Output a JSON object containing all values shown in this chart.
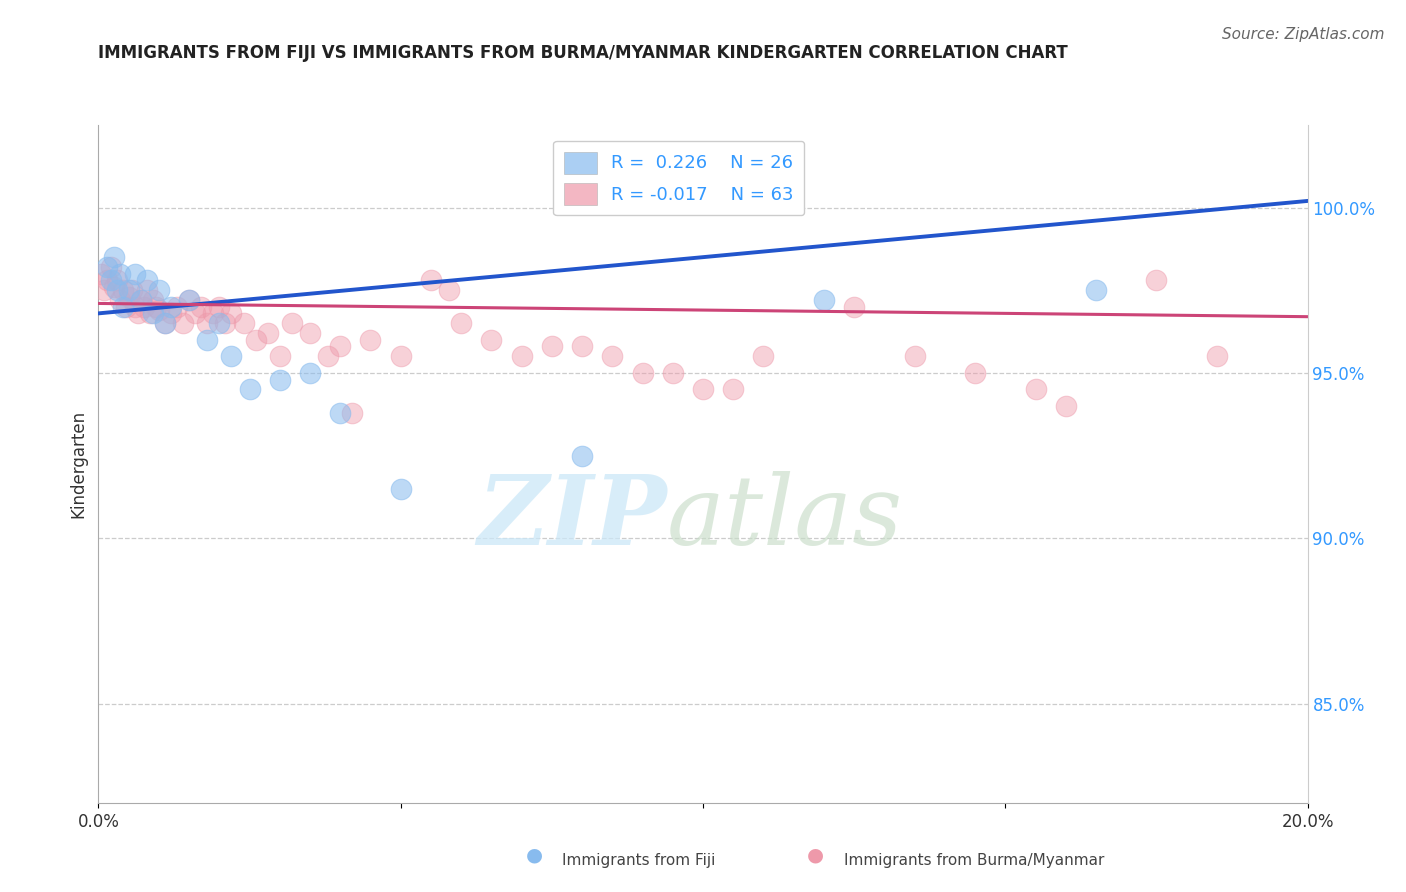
{
  "title": "IMMIGRANTS FROM FIJI VS IMMIGRANTS FROM BURMA/MYANMAR KINDERGARTEN CORRELATION CHART",
  "source": "Source: ZipAtlas.com",
  "ylabel": "Kindergarten",
  "xlim": [
    0.0,
    20.0
  ],
  "ylim": [
    82.0,
    102.5
  ],
  "yticks_right": [
    85.0,
    90.0,
    95.0,
    100.0
  ],
  "ytick_labels_right": [
    "85.0%",
    "90.0%",
    "95.0%",
    "100.0%"
  ],
  "xticks": [
    0.0,
    5.0,
    10.0,
    15.0,
    20.0
  ],
  "xtick_labels": [
    "0.0%",
    "",
    "",
    "",
    "20.0%"
  ],
  "legend_fiji_R": "R =  0.226",
  "legend_fiji_N": "N = 26",
  "legend_burma_R": "R = -0.017",
  "legend_burma_N": "N = 63",
  "fiji_color": "#88bbee",
  "burma_color": "#ee99aa",
  "fiji_line_color": "#2255cc",
  "burma_line_color": "#cc4477",
  "fiji_line_x0": 0.0,
  "fiji_line_y0": 96.8,
  "fiji_line_x1": 20.0,
  "fiji_line_y1": 100.2,
  "burma_line_x0": 0.0,
  "burma_line_y0": 97.1,
  "burma_line_x1": 20.0,
  "burma_line_y1": 96.7,
  "fiji_scatter_x": [
    0.15,
    0.2,
    0.25,
    0.3,
    0.35,
    0.4,
    0.5,
    0.6,
    0.7,
    0.8,
    0.9,
    1.0,
    1.1,
    1.2,
    1.5,
    1.8,
    2.0,
    2.2,
    2.5,
    3.0,
    3.5,
    4.0,
    5.0,
    8.0,
    12.0,
    16.5
  ],
  "fiji_scatter_y": [
    98.2,
    97.8,
    98.5,
    97.5,
    98.0,
    97.0,
    97.5,
    98.0,
    97.2,
    97.8,
    96.8,
    97.5,
    96.5,
    97.0,
    97.2,
    96.0,
    96.5,
    95.5,
    94.5,
    94.8,
    95.0,
    93.8,
    91.5,
    92.5,
    97.2,
    97.5
  ],
  "burma_scatter_x": [
    0.05,
    0.1,
    0.15,
    0.2,
    0.25,
    0.3,
    0.35,
    0.4,
    0.45,
    0.5,
    0.55,
    0.6,
    0.65,
    0.7,
    0.75,
    0.8,
    0.85,
    0.9,
    0.95,
    1.0,
    1.1,
    1.2,
    1.3,
    1.4,
    1.5,
    1.6,
    1.7,
    1.8,
    1.9,
    2.0,
    2.1,
    2.2,
    2.4,
    2.6,
    2.8,
    3.0,
    3.2,
    3.5,
    4.0,
    4.5,
    5.0,
    5.5,
    6.0,
    6.5,
    7.5,
    8.5,
    9.5,
    10.5,
    11.0,
    12.5,
    13.5,
    14.5,
    15.5,
    16.0,
    17.5,
    18.5,
    3.8,
    4.2,
    5.8,
    7.0,
    8.0,
    9.0,
    10.0
  ],
  "burma_scatter_y": [
    98.0,
    97.5,
    97.8,
    98.2,
    97.6,
    97.8,
    97.2,
    97.5,
    97.0,
    97.3,
    97.5,
    97.0,
    96.8,
    97.2,
    97.0,
    97.5,
    96.8,
    97.2,
    97.0,
    96.9,
    96.5,
    96.8,
    97.0,
    96.5,
    97.2,
    96.8,
    97.0,
    96.5,
    96.8,
    97.0,
    96.5,
    96.8,
    96.5,
    96.0,
    96.2,
    95.5,
    96.5,
    96.2,
    95.8,
    96.0,
    95.5,
    97.8,
    96.5,
    96.0,
    95.8,
    95.5,
    95.0,
    94.5,
    95.5,
    97.0,
    95.5,
    95.0,
    94.5,
    94.0,
    97.8,
    95.5,
    95.5,
    93.8,
    97.5,
    95.5,
    95.8,
    95.0,
    94.5
  ]
}
